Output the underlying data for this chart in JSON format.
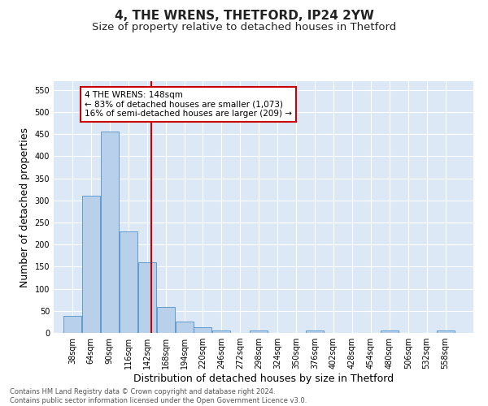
{
  "title": "4, THE WRENS, THETFORD, IP24 2YW",
  "subtitle": "Size of property relative to detached houses in Thetford",
  "xlabel": "Distribution of detached houses by size in Thetford",
  "ylabel": "Number of detached properties",
  "bar_values": [
    38,
    311,
    456,
    230,
    160,
    59,
    25,
    13,
    5,
    0,
    5,
    0,
    0,
    5,
    0,
    0,
    0,
    5,
    0,
    0,
    5
  ],
  "bar_labels": [
    "38sqm",
    "64sqm",
    "90sqm",
    "116sqm",
    "142sqm",
    "168sqm",
    "194sqm",
    "220sqm",
    "246sqm",
    "272sqm",
    "298sqm",
    "324sqm",
    "350sqm",
    "376sqm",
    "402sqm",
    "428sqm",
    "454sqm",
    "480sqm",
    "506sqm",
    "532sqm",
    "558sqm"
  ],
  "bar_color": "#b8d0ea",
  "bar_edge_color": "#5090c8",
  "annotation_box_text": "4 THE WRENS: 148sqm\n← 83% of detached houses are smaller (1,073)\n16% of semi-detached houses are larger (209) →",
  "vline_color": "#cc0000",
  "vline_x": 148,
  "ylim": [
    0,
    570
  ],
  "yticks": [
    0,
    50,
    100,
    150,
    200,
    250,
    300,
    350,
    400,
    450,
    500,
    550
  ],
  "footer_text": "Contains HM Land Registry data © Crown copyright and database right 2024.\nContains public sector information licensed under the Open Government Licence v3.0.",
  "plot_bg_color": "#dce8f5",
  "annotation_box_color": "#ffffff",
  "annotation_box_edge_color": "#cc0000",
  "title_fontsize": 11,
  "subtitle_fontsize": 9.5,
  "label_fontsize": 9,
  "tick_fontsize": 7,
  "footer_fontsize": 6,
  "annot_fontsize": 7.5
}
